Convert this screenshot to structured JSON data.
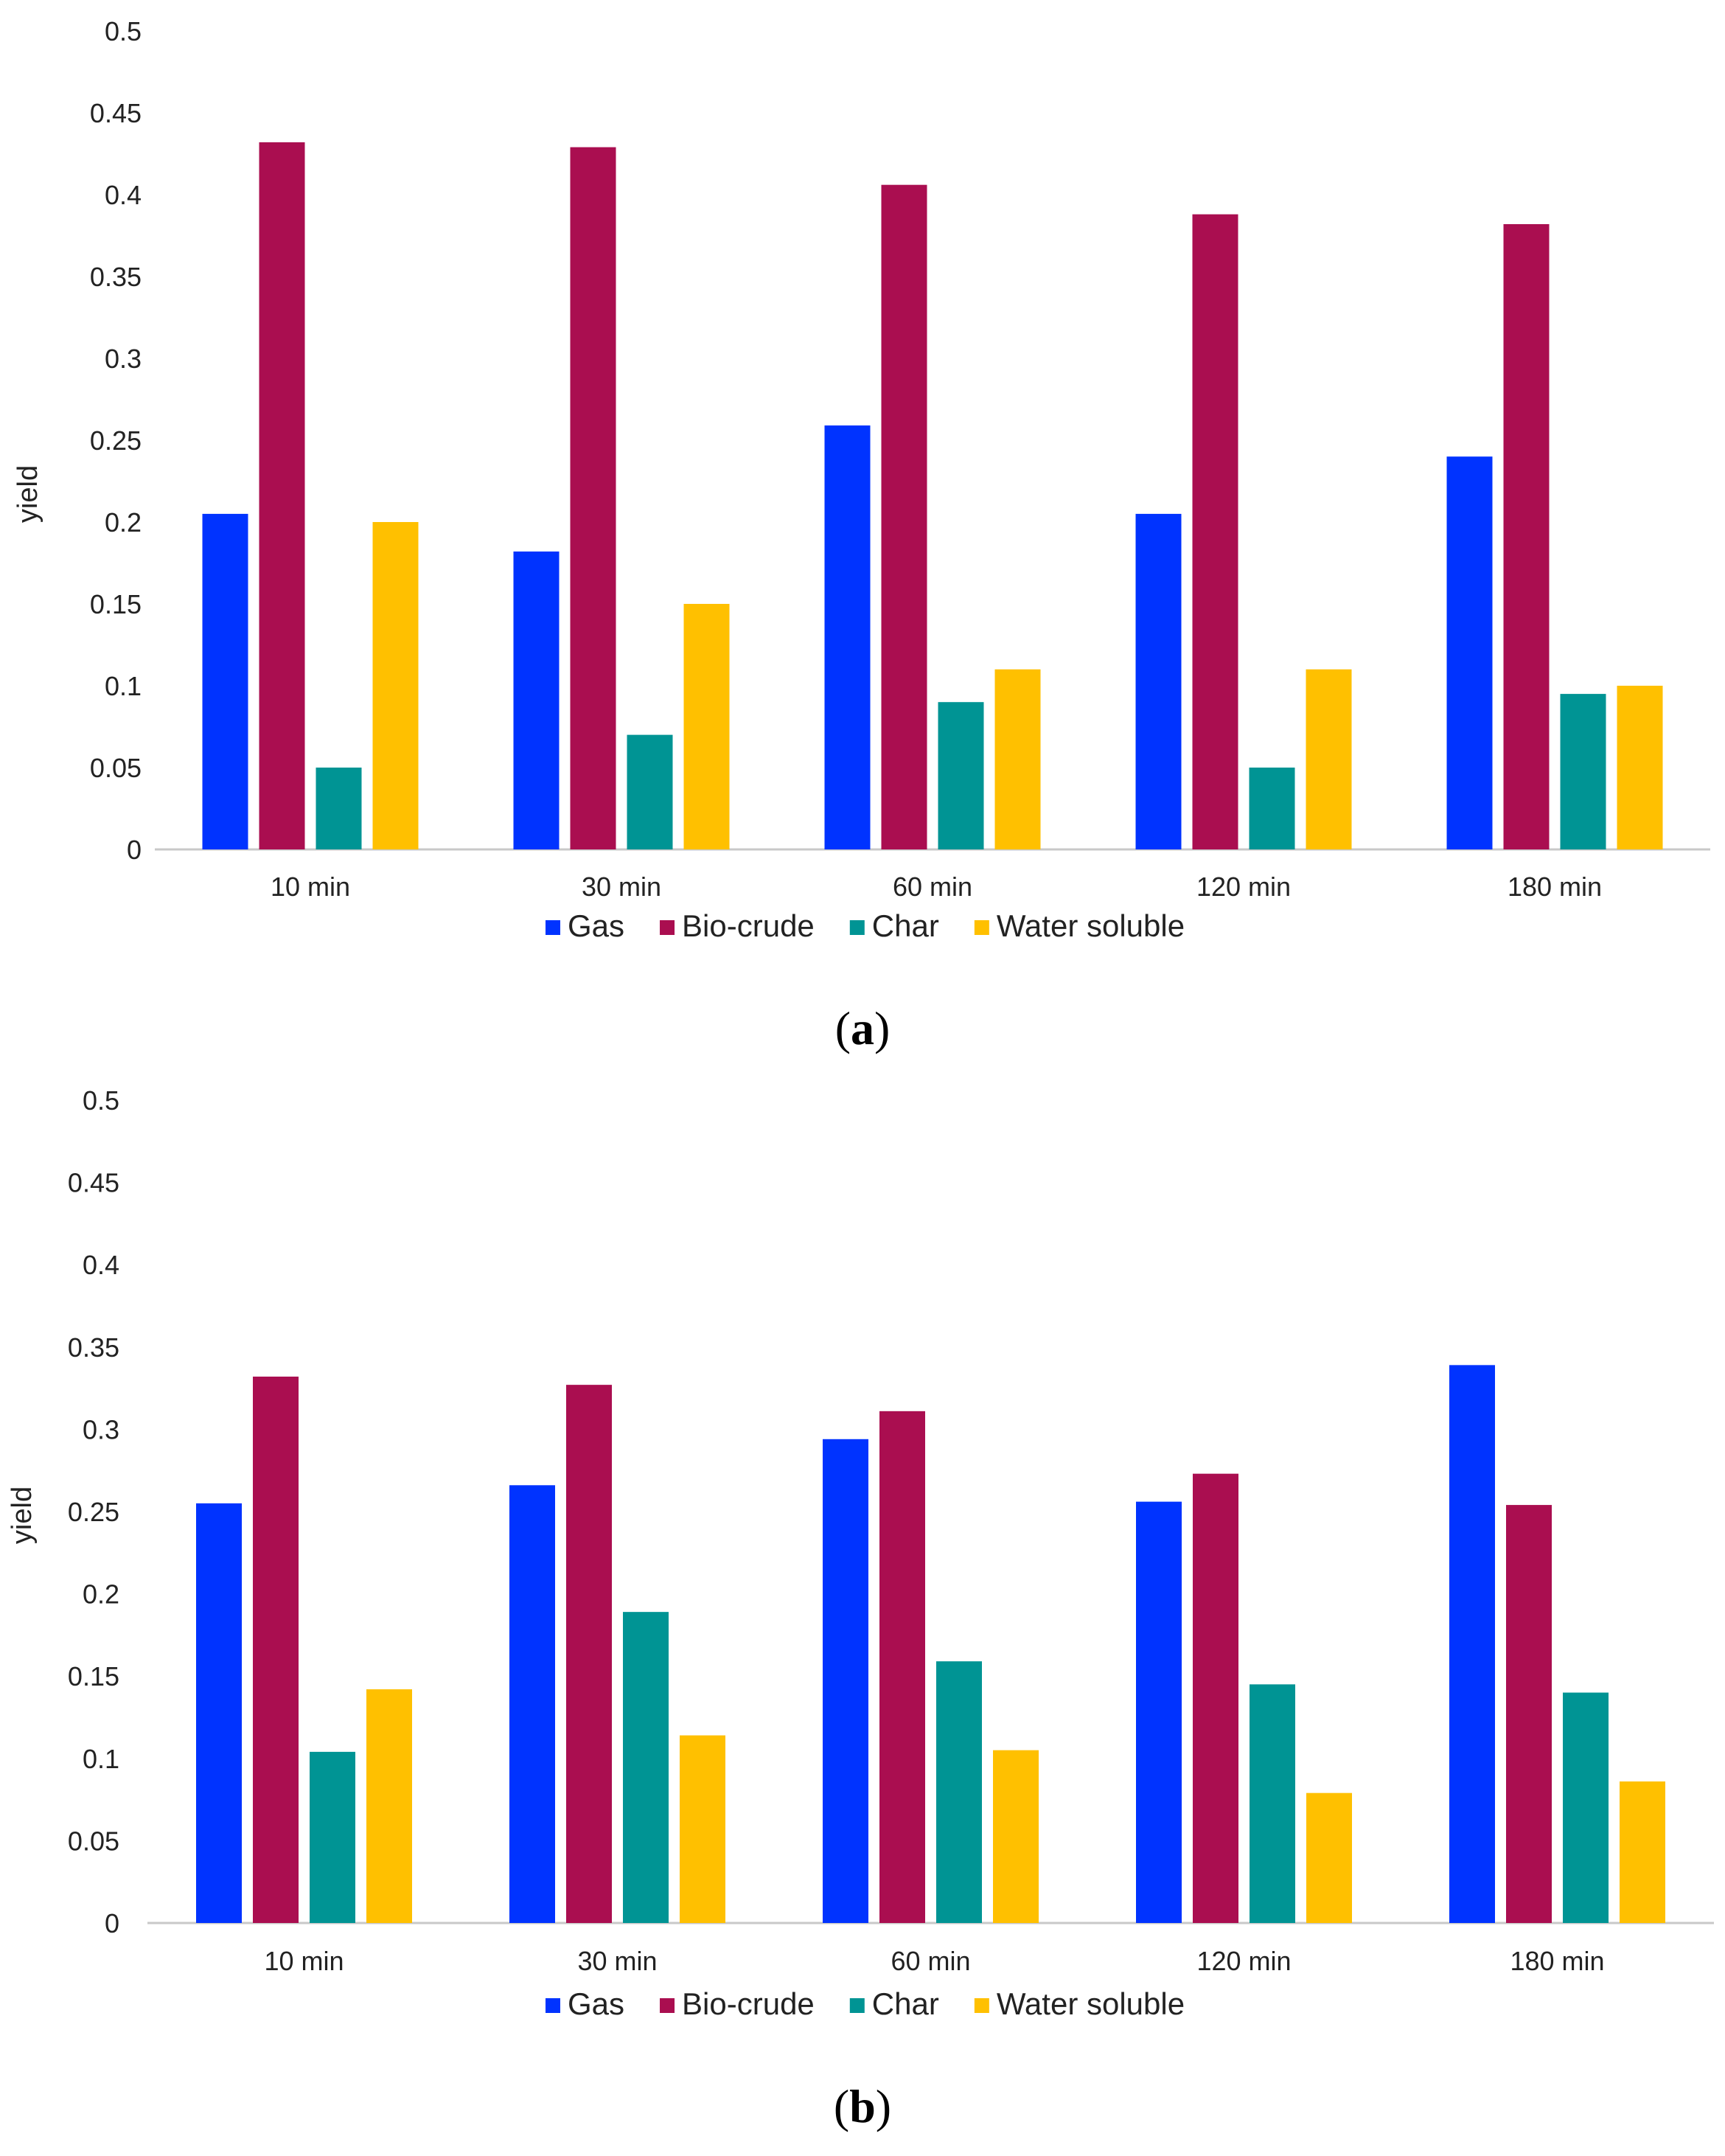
{
  "chart_data": [
    {
      "panel": "a",
      "type": "bar",
      "title": "",
      "caption": "(a)",
      "caption_letter": "a",
      "xlabel": "",
      "ylabel": "yield",
      "ylim": [
        0,
        0.5
      ],
      "yticks": [
        "0",
        "0.05",
        "0.1",
        "0.15",
        "0.2",
        "0.25",
        "0.3",
        "0.35",
        "0.4",
        "0.45",
        "0.5"
      ],
      "categories": [
        "10 min",
        "30 min",
        "60 min",
        "120 min",
        "180 min"
      ],
      "series": [
        {
          "name": "Gas",
          "color": "#0033FF",
          "values": [
            0.205,
            0.182,
            0.259,
            0.205,
            0.24
          ]
        },
        {
          "name": "Bio-crude",
          "color": "#AA0E50",
          "values": [
            0.432,
            0.429,
            0.406,
            0.388,
            0.382
          ]
        },
        {
          "name": "Char",
          "color": "#009494",
          "values": [
            0.05,
            0.07,
            0.09,
            0.05,
            0.095
          ]
        },
        {
          "name": "Water soluble",
          "color": "#FFC000",
          "values": [
            0.2,
            0.15,
            0.11,
            0.11,
            0.1
          ]
        }
      ],
      "legend": "bottom-center",
      "grid": false
    },
    {
      "panel": "b",
      "type": "bar",
      "title": "",
      "caption": "(b)",
      "caption_letter": "b",
      "xlabel": "",
      "ylabel": "yield",
      "ylim": [
        0,
        0.5
      ],
      "yticks": [
        "0",
        "0.05",
        "0.1",
        "0.15",
        "0.2",
        "0.25",
        "0.3",
        "0.35",
        "0.4",
        "0.45",
        "0.5"
      ],
      "categories": [
        "10 min",
        "30 min",
        "60 min",
        "120 min",
        "180 min"
      ],
      "series": [
        {
          "name": "Gas",
          "color": "#0033FF",
          "values": [
            0.255,
            0.266,
            0.294,
            0.256,
            0.339
          ]
        },
        {
          "name": "Bio-crude",
          "color": "#AA0E50",
          "values": [
            0.332,
            0.327,
            0.311,
            0.273,
            0.254
          ]
        },
        {
          "name": "Char",
          "color": "#009494",
          "values": [
            0.104,
            0.189,
            0.159,
            0.145,
            0.14
          ]
        },
        {
          "name": "Water soluble",
          "color": "#FFC000",
          "values": [
            0.142,
            0.114,
            0.105,
            0.079,
            0.086
          ]
        }
      ],
      "legend": "bottom-center",
      "grid": false
    }
  ]
}
